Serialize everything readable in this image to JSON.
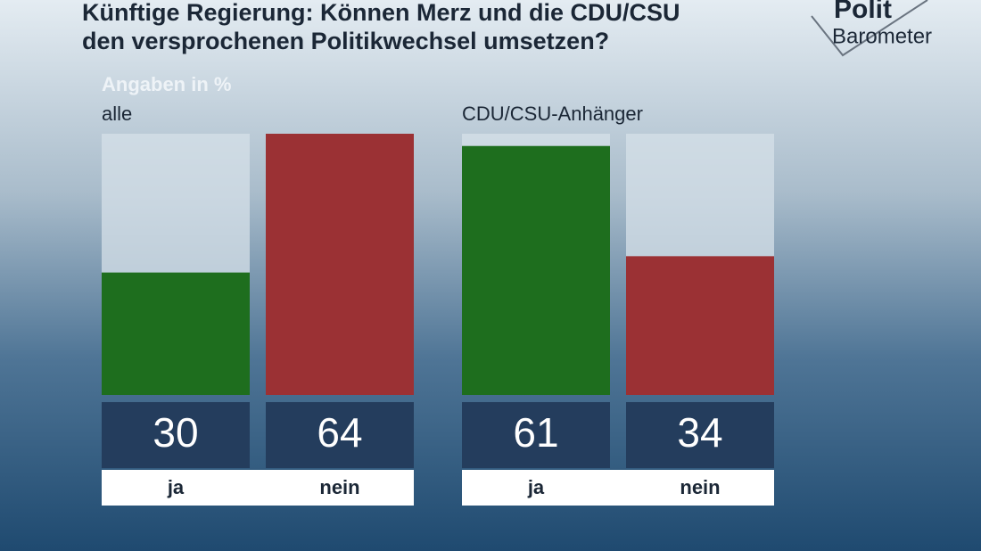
{
  "header": {
    "title": [
      "Künftige Regierung: Können Merz und die CDU/CSU",
      "den versprochenen Politikwechsel umsetzen?"
    ],
    "subtitle": "Angaben in %",
    "logo": [
      "Polit",
      "Barometer"
    ]
  },
  "chart_data": [
    {
      "type": "bar",
      "title": "alle",
      "categories": [
        "ja",
        "nein"
      ],
      "values": [
        30,
        64
      ],
      "colors": [
        "#1e6e1e",
        "#9b3134"
      ],
      "ylim": [
        0,
        64
      ]
    },
    {
      "type": "bar",
      "title": "CDU/CSU-Anhänger",
      "categories": [
        "ja",
        "nein"
      ],
      "values": [
        61,
        34
      ],
      "colors": [
        "#1e6e1e",
        "#9b3134"
      ],
      "ylim": [
        0,
        64
      ]
    }
  ]
}
